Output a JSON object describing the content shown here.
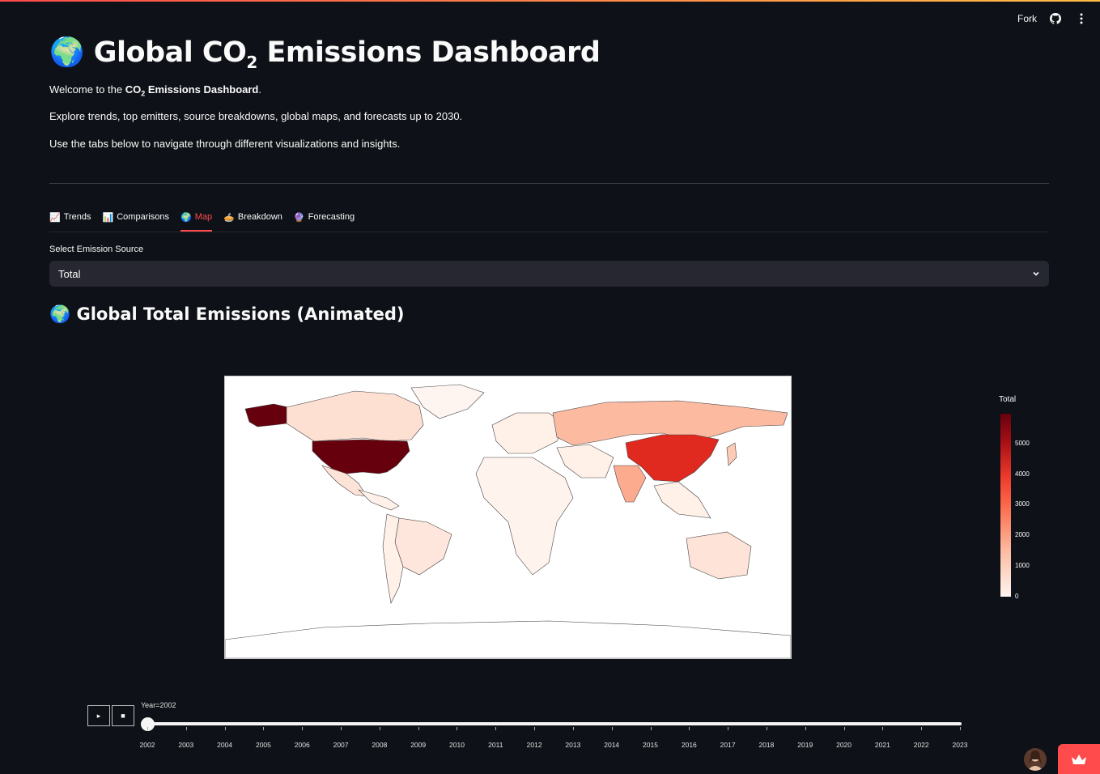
{
  "header": {
    "fork_label": "Fork"
  },
  "page": {
    "title_prefix": "Global CO",
    "title_sub": "2",
    "title_suffix": " Emissions Dashboard",
    "welcome_prefix": "Welcome to the ",
    "welcome_bold_prefix": "CO",
    "welcome_bold_sub": "2",
    "welcome_bold_suffix": " Emissions Dashboard",
    "welcome_end": ".",
    "explore_text": "Explore trends, top emitters, source breakdowns, global maps, and forecasts up to 2030.",
    "nav_text": "Use the tabs below to navigate through different visualizations and insights."
  },
  "tabs": [
    {
      "icon": "📈",
      "label": "Trends",
      "active": false
    },
    {
      "icon": "📊",
      "label": "Comparisons",
      "active": false
    },
    {
      "icon": "🌍",
      "label": "Map",
      "active": true
    },
    {
      "icon": "🥧",
      "label": "Breakdown",
      "active": false
    },
    {
      "icon": "🔮",
      "label": "Forecasting",
      "active": false
    }
  ],
  "select": {
    "label": "Select Emission Source",
    "value": "Total"
  },
  "section": {
    "title": "Global Total Emissions (Animated)"
  },
  "colorbar": {
    "title": "Total",
    "ticks": [
      "5000",
      "4000",
      "3000",
      "2000",
      "1000",
      "0"
    ]
  },
  "animation": {
    "current_label": "Year=2002",
    "play_symbol": "▸",
    "stop_symbol": "■",
    "years": [
      "2002",
      "2003",
      "2004",
      "2005",
      "2006",
      "2007",
      "2008",
      "2009",
      "2010",
      "2011",
      "2012",
      "2013",
      "2014",
      "2015",
      "2016",
      "2017",
      "2018",
      "2019",
      "2020",
      "2021",
      "2022",
      "2023"
    ],
    "current_index": 0
  },
  "colors": {
    "accent": "#ff4b4b",
    "background": "#0e1117",
    "widget": "#262730"
  }
}
